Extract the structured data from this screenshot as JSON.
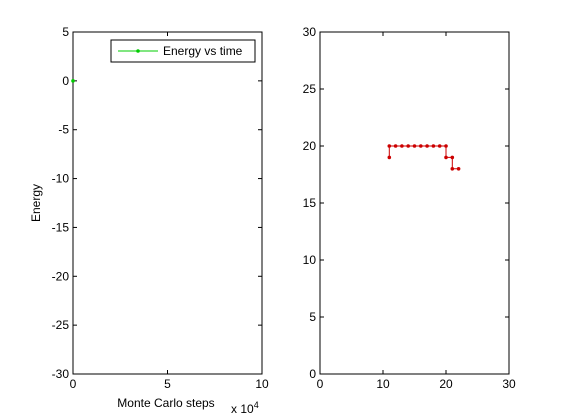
{
  "figure": {
    "background": "#ffffff",
    "axis_color": "#000000"
  },
  "chart_data": [
    {
      "type": "line",
      "xlabel": "Monte Carlo steps",
      "ylabel": "Energy",
      "xlim": [
        0,
        100000
      ],
      "ylim": [
        -30,
        5
      ],
      "x_ticks": [
        0,
        5,
        10
      ],
      "x_tick_labels": [
        "0",
        "5",
        "10"
      ],
      "x_exponent_label": "x 10",
      "x_exponent": "4",
      "y_ticks": [
        5,
        0,
        -5,
        -10,
        -15,
        -20,
        -25,
        -30
      ],
      "y_tick_labels": [
        "5",
        "0",
        "-5",
        "-10",
        "-15",
        "-20",
        "-25",
        "-30"
      ],
      "grid": false,
      "legend_position": "top-right",
      "series": [
        {
          "name": "Energy vs time",
          "color": "#00cc00",
          "marker": "dot",
          "x": [
            0
          ],
          "y": [
            0
          ]
        }
      ]
    },
    {
      "type": "line",
      "xlim": [
        0,
        30
      ],
      "ylim": [
        0,
        30
      ],
      "x_ticks": [
        0,
        10,
        20,
        30
      ],
      "x_tick_labels": [
        "0",
        "10",
        "20",
        "30"
      ],
      "y_ticks": [
        30,
        25,
        20,
        15,
        10,
        5,
        0
      ],
      "y_tick_labels": [
        "30",
        "25",
        "20",
        "15",
        "10",
        "5",
        "0"
      ],
      "grid": false,
      "series": [
        {
          "color": "#cc0000",
          "marker": "dot",
          "x": [
            11,
            11,
            12,
            13,
            14,
            15,
            16,
            17,
            18,
            19,
            20,
            20,
            21,
            21,
            22
          ],
          "y": [
            19,
            20,
            20,
            20,
            20,
            20,
            20,
            20,
            20,
            20,
            20,
            19,
            19,
            18,
            18
          ]
        }
      ]
    }
  ]
}
